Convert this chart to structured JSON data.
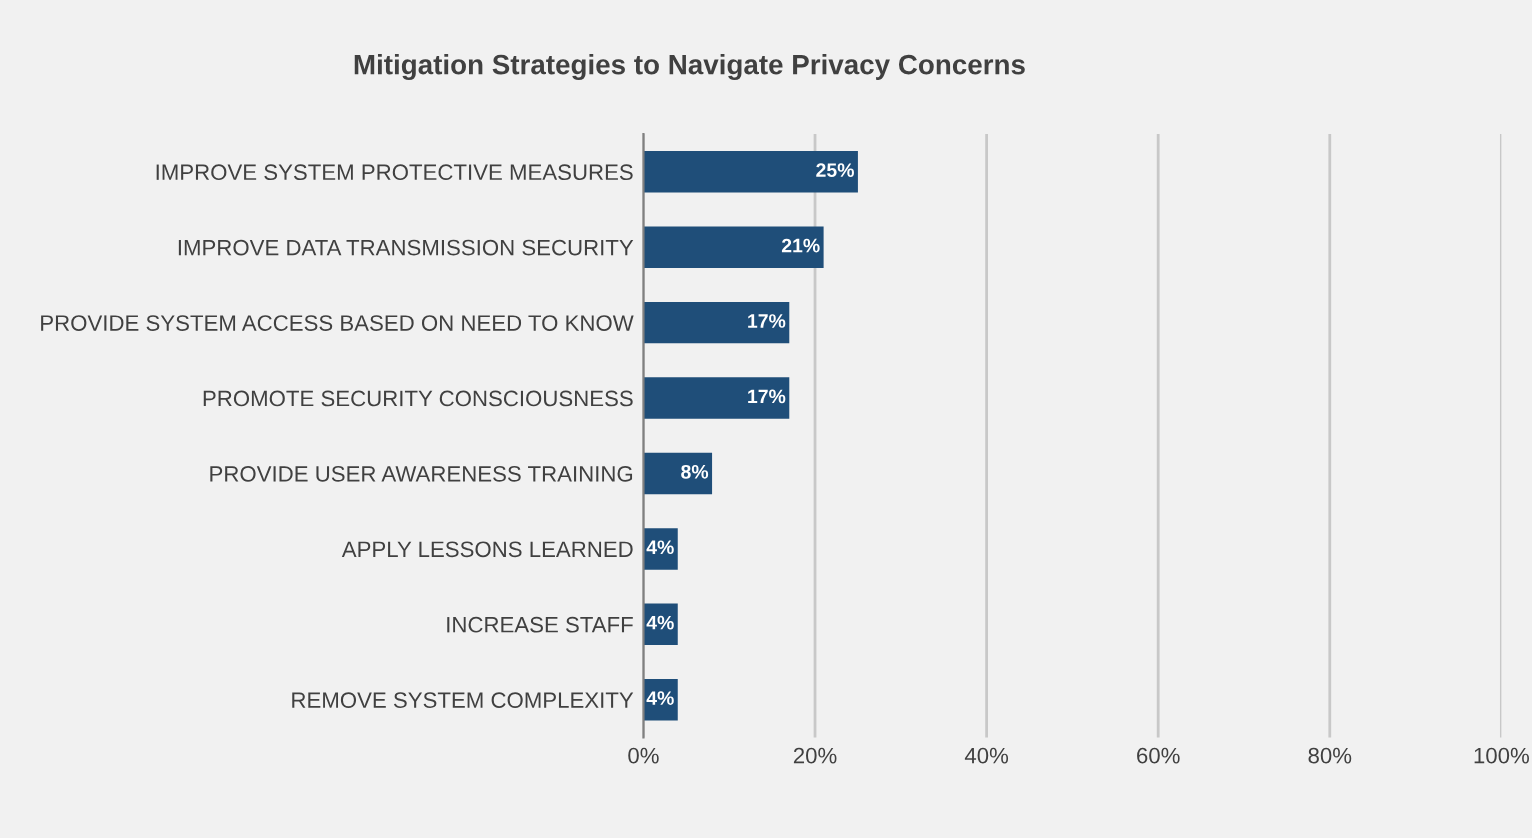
{
  "chart_data": {
    "type": "bar",
    "orientation": "horizontal",
    "title": "Mitigation Strategies to Navigate Privacy Concerns",
    "categories": [
      "IMPROVE SYSTEM PROTECTIVE MEASURES",
      "IMPROVE DATA TRANSMISSION SECURITY",
      "PROVIDE SYSTEM ACCESS BASED ON NEED TO KNOW",
      "PROMOTE SECURITY CONSCIOUSNESS",
      "PROVIDE USER AWARENESS TRAINING",
      "APPLY LESSONS LEARNED",
      "INCREASE STAFF",
      "REMOVE SYSTEM COMPLEXITY"
    ],
    "values": [
      25,
      21,
      17,
      17,
      8,
      4,
      4,
      4
    ],
    "value_labels": [
      "25%",
      "21%",
      "17%",
      "17%",
      "8%",
      "4%",
      "4%",
      "4%"
    ],
    "color": "#1f4e79",
    "xlim": [
      0,
      100
    ],
    "xticks": [
      {
        "value": 0,
        "label": "0%"
      },
      {
        "value": 20,
        "label": "20%"
      },
      {
        "value": 40,
        "label": "40%"
      },
      {
        "value": 60,
        "label": "60%"
      },
      {
        "value": 80,
        "label": "80%"
      },
      {
        "value": 100,
        "label": "100%"
      }
    ],
    "grid": "x",
    "legend": false
  }
}
